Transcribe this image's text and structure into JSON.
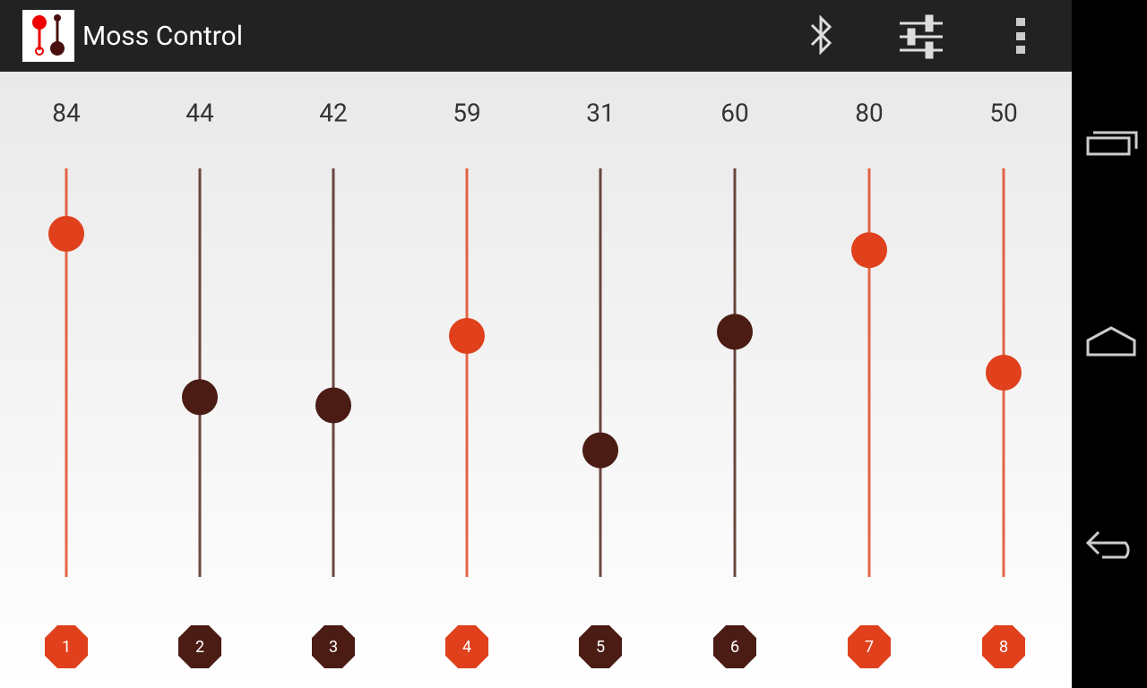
{
  "app_bar": {
    "title": "Moss Control"
  },
  "sliders": [
    {
      "label": "1",
      "value": 84,
      "color": "#e0401c"
    },
    {
      "label": "2",
      "value": 44,
      "color": "#4a1c14"
    },
    {
      "label": "3",
      "value": 42,
      "color": "#4a1c14"
    },
    {
      "label": "4",
      "value": 59,
      "color": "#e0401c"
    },
    {
      "label": "5",
      "value": 31,
      "color": "#4a1c14"
    },
    {
      "label": "6",
      "value": 60,
      "color": "#4a1c14"
    },
    {
      "label": "7",
      "value": 80,
      "color": "#e0401c"
    },
    {
      "label": "8",
      "value": 50,
      "color": "#e0401c"
    }
  ]
}
